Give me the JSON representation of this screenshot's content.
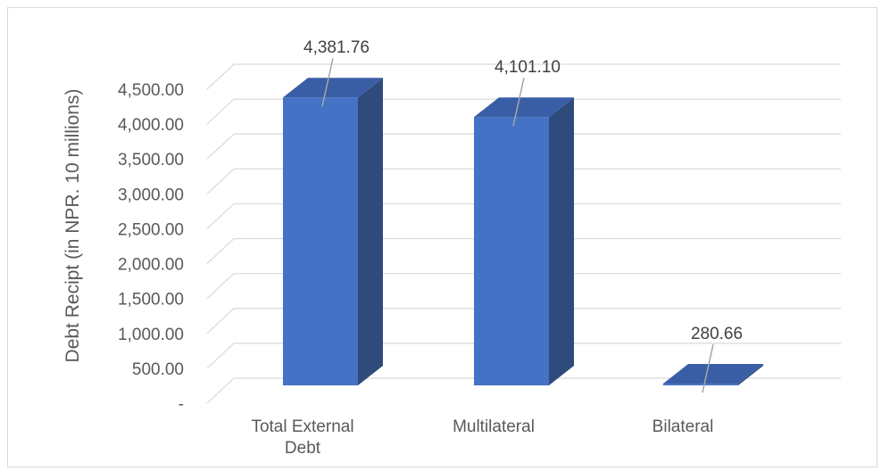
{
  "chart_data": {
    "type": "bar",
    "style": "3d-column",
    "categories": [
      "Total External Debt",
      "Multilateral",
      "Bilateral"
    ],
    "category_lines": [
      [
        "Total External",
        "Debt"
      ],
      [
        "Multilateral"
      ],
      [
        "Bilateral"
      ]
    ],
    "values": [
      4381.76,
      4101.1,
      280.66
    ],
    "value_labels": [
      "4,381.76",
      "4,101.10",
      "280.66"
    ],
    "ylabel": "Debt Recipt (in NPR. 10 millions)",
    "xlabel": "",
    "title": "",
    "ylim": [
      0,
      4500
    ],
    "yticks": [
      0,
      500,
      1000,
      1500,
      2000,
      2500,
      3000,
      3500,
      4000,
      4500
    ],
    "ytick_labels": [
      "-",
      "500.00",
      "1,000.00",
      "1,500.00",
      "2,000.00",
      "2,500.00",
      "3,000.00",
      "3,500.00",
      "4,000.00",
      "4,500.00"
    ],
    "grid": true,
    "legend": "none",
    "colors": {
      "bar_front": "#4472c4",
      "bar_side": "#2f4b7c",
      "bar_top": "#3a5ea6",
      "grid": "#d9d9d9",
      "text": "#595959"
    }
  }
}
